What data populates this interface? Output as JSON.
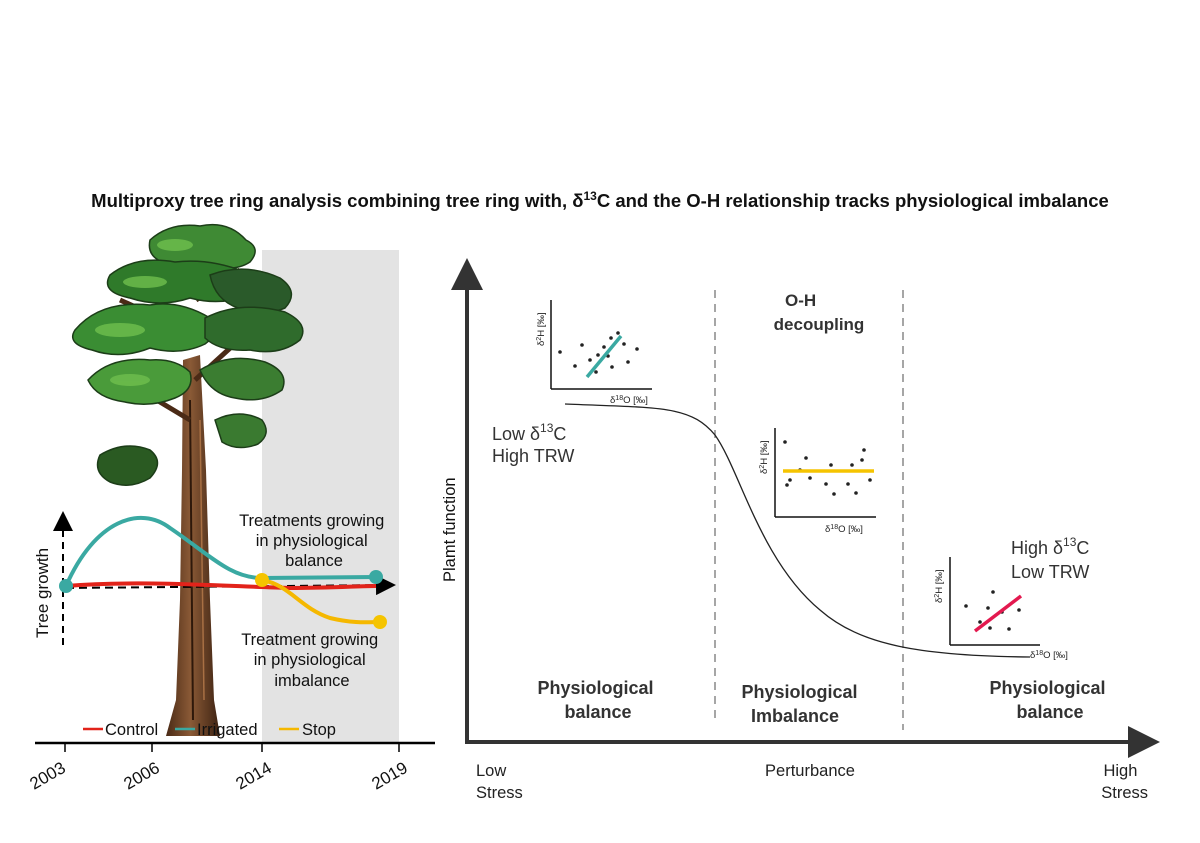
{
  "title": "Multiproxy tree ring analysis combining tree ring with, δ13C and the O-H relationship tracks physiological imbalance",
  "title_parts": {
    "before": "Multiproxy tree ring analysis combining tree ring with, δ",
    "sup": "13",
    "after": "C and the O-H relationship tracks physiological imbalance"
  },
  "left_panel": {
    "y_axis_label": "Tree growth",
    "years": [
      "2003",
      "2006",
      "2014",
      "2019"
    ],
    "label_balance": [
      "Treatments growing",
      "in physiological",
      "balance"
    ],
    "label_imbalance": [
      "Treatment growing",
      "in physiological",
      "imbalance"
    ],
    "legend": [
      {
        "label": "Control",
        "color": "#e2231a"
      },
      {
        "label": "Irrigated",
        "color": "#3aa9a2"
      },
      {
        "label": "Stop",
        "color": "#f5b800"
      }
    ]
  },
  "right_panel": {
    "y_axis_label": "Plamt function",
    "x_left": [
      "Low",
      "Stress"
    ],
    "x_middle": "Perturbance",
    "x_right": [
      "High",
      "Stress"
    ],
    "zones": [
      {
        "label": [
          "Physiological",
          "balance"
        ]
      },
      {
        "label": [
          "Physiological",
          "Imbalance"
        ]
      },
      {
        "label": [
          "Physiological",
          "balance"
        ]
      }
    ],
    "oh_decoupling": [
      "O-H",
      "decoupling"
    ],
    "low_state": {
      "line1_prefix": "Low δ",
      "line1_sup": "13",
      "line1_suffix": "C",
      "line2": "High TRW"
    },
    "high_state": {
      "line1_prefix": "High δ",
      "line1_sup": "13",
      "line1_suffix": "C",
      "line2": "Low TRW"
    },
    "inset_axis": {
      "y_prefix": "δ",
      "y_sup": "2",
      "y_suffix": "H [‰]",
      "x_prefix": "δ",
      "x_sup": "18",
      "x_suffix": "O [‰]"
    },
    "inset_colors": [
      "#3aa9a2",
      "#f5c400",
      "#e3194f"
    ]
  }
}
